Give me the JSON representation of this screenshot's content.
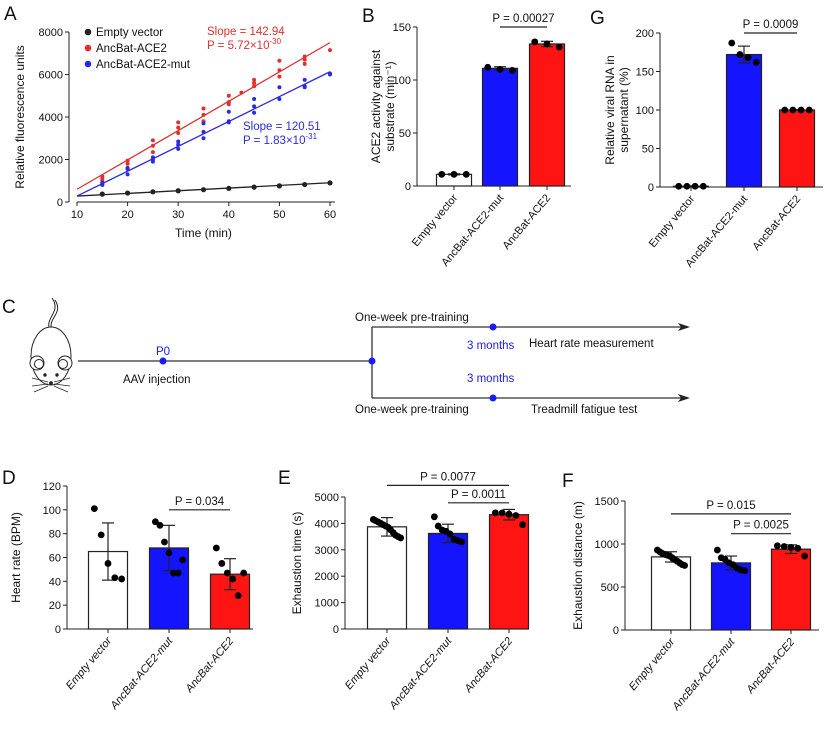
{
  "panel_labels": {
    "A": "A",
    "B": "B",
    "C": "C",
    "D": "D",
    "E": "E",
    "F": "F",
    "G": "G"
  },
  "colors": {
    "empty": "#ffffff",
    "mut": "#1414ff",
    "ace2": "#ff1414",
    "black_series": "#222222",
    "red_series": "#e03030",
    "blue_series": "#2a2ae0",
    "timeline_dot": "#1a1aff"
  },
  "chart_data": [
    {
      "id": "A",
      "type": "scatter",
      "xlabel": "Time (min)",
      "ylabel": "Relative fluorescence units",
      "xlim": [
        10,
        60
      ],
      "ylim": [
        0,
        8000
      ],
      "xticks": [
        10,
        20,
        30,
        40,
        50,
        60
      ],
      "yticks": [
        0,
        2000,
        4000,
        6000,
        8000
      ],
      "legend": "top-left",
      "series": [
        {
          "name": "Empty vector",
          "color": "#222222",
          "fit": [
            [
              10,
              280
            ],
            [
              60,
              905
            ]
          ],
          "points": [
            [
              15,
              370
            ],
            [
              20,
              420
            ],
            [
              25,
              480
            ],
            [
              30,
              530
            ],
            [
              35,
              580
            ],
            [
              40,
              640
            ],
            [
              45,
              700
            ],
            [
              50,
              760
            ],
            [
              55,
              820
            ],
            [
              60,
              900
            ]
          ]
        },
        {
          "name": "AncBat-ACE2",
          "color": "#e03030",
          "fit": [
            [
              10,
              600
            ],
            [
              60,
              7500
            ]
          ],
          "points": [
            [
              15,
              1000
            ],
            [
              15,
              1100
            ],
            [
              15,
              1200
            ],
            [
              20,
              1600
            ],
            [
              20,
              1800
            ],
            [
              20,
              1950
            ],
            [
              25,
              2350
            ],
            [
              25,
              2650
            ],
            [
              25,
              2900
            ],
            [
              30,
              3250
            ],
            [
              30,
              3500
            ],
            [
              30,
              3750
            ],
            [
              35,
              3800
            ],
            [
              35,
              4100
            ],
            [
              35,
              4400
            ],
            [
              40,
              4600
            ],
            [
              40,
              4700
            ],
            [
              40,
              5000
            ],
            [
              42.5,
              5150
            ],
            [
              45,
              5450
            ],
            [
              45,
              5600
            ],
            [
              45,
              5750
            ],
            [
              50,
              5900
            ],
            [
              50,
              6200
            ],
            [
              50,
              6650
            ],
            [
              55,
              6500
            ],
            [
              55,
              6700
            ],
            [
              55,
              6850
            ],
            [
              60,
              7150
            ]
          ]
        },
        {
          "name": "AncBat-ACE2-mut",
          "color": "#2a2ae0",
          "fit": [
            [
              10,
              280
            ],
            [
              60,
              6130
            ]
          ],
          "points": [
            [
              15,
              800
            ],
            [
              15,
              850
            ],
            [
              15,
              900
            ],
            [
              20,
              1300
            ],
            [
              20,
              1550
            ],
            [
              20,
              1600
            ],
            [
              25,
              1900
            ],
            [
              25,
              2000
            ],
            [
              25,
              2100
            ],
            [
              30,
              2500
            ],
            [
              30,
              2700
            ],
            [
              30,
              2850
            ],
            [
              35,
              3000
            ],
            [
              35,
              3300
            ],
            [
              35,
              3700
            ],
            [
              40,
              3750
            ],
            [
              40,
              3800
            ],
            [
              40,
              4250
            ],
            [
              45,
              4200
            ],
            [
              45,
              4500
            ],
            [
              45,
              4850
            ],
            [
              50,
              4850
            ],
            [
              50,
              5400
            ],
            [
              55,
              5400
            ],
            [
              55,
              5450
            ],
            [
              55,
              5750
            ],
            [
              60,
              6000
            ],
            [
              60,
              6050
            ]
          ]
        }
      ],
      "annotations": [
        {
          "slope": "Slope = 142.94",
          "p_base": "P = 5.72×10",
          "p_exp": "-30",
          "color": "#e03030"
        },
        {
          "slope": "Slope = 120.51",
          "p_base": "P = 1.83×10",
          "p_exp": "-31",
          "color": "#2a2ae0"
        }
      ]
    },
    {
      "id": "B",
      "type": "bar",
      "ylabel": [
        "ACE2 activity against",
        "substrate (min⁻¹)"
      ],
      "categories": [
        "Empty vector",
        "AncBat-ACE2-mut",
        "AncBat-ACE2"
      ],
      "values": [
        11,
        111,
        134
      ],
      "errors": [
        0.5,
        1.5,
        2.5
      ],
      "points": [
        [
          11,
          11,
          11
        ],
        [
          112,
          110,
          109
        ],
        [
          136,
          134,
          131
        ]
      ],
      "ylim": [
        0,
        150
      ],
      "yticks": [
        0,
        50,
        100,
        150
      ],
      "italic_x": false,
      "significance": [
        {
          "groups": [
            1,
            2
          ],
          "y": 150,
          "label": "P = 0.00027"
        }
      ]
    },
    {
      "id": "G",
      "type": "bar",
      "ylabel": [
        "Relative viral RNA in",
        "supernatant (%)"
      ],
      "categories": [
        "Empty vector",
        "AncBat-ACE2-mut",
        "AncBat-ACE2"
      ],
      "values": [
        1,
        172,
        100
      ],
      "errors": [
        0.5,
        11,
        0.5
      ],
      "points": [
        [
          1,
          1,
          1,
          1
        ],
        [
          187,
          172,
          168,
          162
        ],
        [
          100,
          100,
          100,
          100
        ]
      ],
      "ylim": [
        0,
        200
      ],
      "yticks": [
        0,
        50,
        100,
        150,
        200
      ],
      "italic_x": false,
      "significance": [
        {
          "groups": [
            1,
            2
          ],
          "y": 200,
          "label": "P = 0.0009"
        }
      ]
    },
    {
      "id": "D",
      "type": "bar",
      "ylabel": [
        "Heart rate (BPM)"
      ],
      "categories": [
        "Empty vector",
        "AncBat-ACE2-mut",
        "AncBat-ACE2"
      ],
      "values": [
        65,
        68,
        46
      ],
      "errors": [
        24,
        19,
        13
      ],
      "points": [
        [
          101,
          79,
          55,
          43,
          42
        ],
        [
          90,
          87,
          73,
          64,
          47,
          47,
          58
        ],
        [
          68,
          55,
          47,
          42,
          28,
          47
        ]
      ],
      "ylim": [
        0,
        120
      ],
      "yticks": [
        0,
        20,
        40,
        60,
        80,
        100,
        120
      ],
      "italic_x": true,
      "significance": [
        {
          "groups": [
            1,
            2
          ],
          "y": 100,
          "label": "P = 0.034"
        }
      ]
    },
    {
      "id": "E",
      "type": "bar",
      "ylabel": [
        "Exhaustion time (s)"
      ],
      "categories": [
        "Empty vector",
        "AncBat-ACE2-mut",
        "AncBat-ACE2"
      ],
      "values": [
        3870,
        3620,
        4330
      ],
      "errors": [
        350,
        350,
        200
      ],
      "points": [
        [
          4150,
          4100,
          4050,
          4000,
          3950,
          3900,
          3850,
          3750,
          3650,
          3550,
          3500,
          3450
        ],
        [
          4250,
          3900,
          3750,
          3700,
          3600,
          3400,
          3350,
          3300
        ],
        [
          4400,
          4400,
          4350,
          4300,
          3950
        ]
      ],
      "ylim": [
        0,
        5000
      ],
      "yticks": [
        0,
        1000,
        2000,
        3000,
        4000,
        5000
      ],
      "italic_x": true,
      "significance": [
        {
          "groups": [
            0,
            2
          ],
          "y": 5440,
          "label": "P = 0.0077"
        },
        {
          "groups": [
            1,
            2
          ],
          "y": 4780,
          "label": "P = 0.0011"
        }
      ]
    },
    {
      "id": "F",
      "type": "bar",
      "ylabel": [
        "Exhaustion distance (m)"
      ],
      "categories": [
        "Empty vector",
        "AncBat-ACE2-mut",
        "AncBat-ACE2"
      ],
      "values": [
        850,
        780,
        940
      ],
      "errors": [
        60,
        80,
        50
      ],
      "points": [
        [
          930,
          910,
          890,
          880,
          870,
          860,
          840,
          820,
          800,
          780,
          760,
          750
        ],
        [
          930,
          840,
          820,
          780,
          760,
          720,
          700,
          690
        ],
        [
          980,
          970,
          960,
          950,
          860
        ]
      ],
      "ylim": [
        0,
        1500
      ],
      "yticks": [
        0,
        500,
        1000,
        1500
      ],
      "italic_x": true,
      "significance": [
        {
          "groups": [
            0,
            2
          ],
          "y": 1350,
          "label": "P = 0.015"
        },
        {
          "groups": [
            1,
            2
          ],
          "y": 1120,
          "label": "P = 0.0025"
        }
      ]
    }
  ],
  "timeline": {
    "p0": "P0",
    "aav": "AAV injection",
    "pretrain_top": "One-week pre-training",
    "pretrain_bottom": "One-week pre-training",
    "months_top": "3 months",
    "months_bottom": "3 months",
    "heart": "Heart rate measurement",
    "treadmill": "Treadmill fatigue test"
  }
}
